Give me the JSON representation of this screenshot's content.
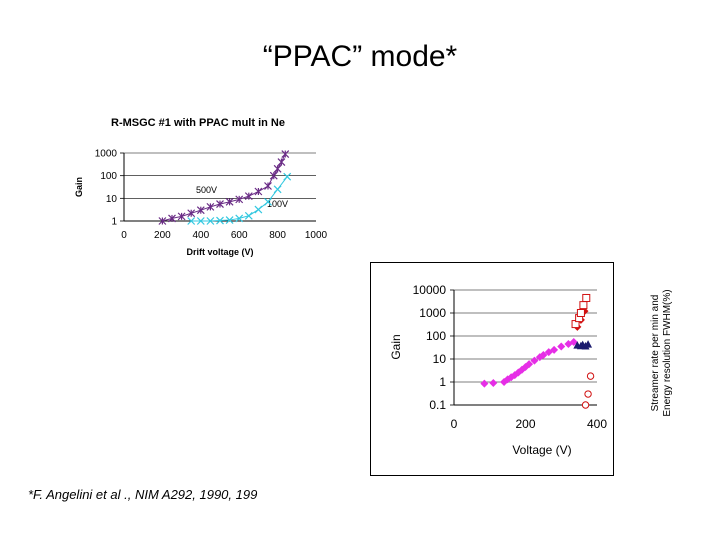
{
  "slide": {
    "title": "“PPAC” mode*",
    "footnote": "*F. Angelini et al ., NIM A292, 1990, 199",
    "side_label_line1": "Streamer rate per min and",
    "side_label_line2": "Energy resolution FWHM(%)"
  },
  "chart_data": [
    {
      "type": "scatter",
      "title": "R-MSGC #1 with PPAC mult in Ne",
      "xlabel": "Drift voltage (V)",
      "ylabel": "Gain",
      "yscale": "log",
      "xlim": [
        0,
        1000
      ],
      "ylim": [
        1,
        1000
      ],
      "x_ticks": [
        0,
        200,
        400,
        600,
        800,
        1000
      ],
      "y_ticks": [
        1,
        10,
        100,
        1000
      ],
      "x_tick_labels": [
        "0",
        "200",
        "400",
        "600",
        "800",
        "1000"
      ],
      "y_tick_labels": [
        "1",
        "10",
        "100",
        "1000"
      ],
      "annotations": [
        "500V",
        "100V"
      ],
      "series": [
        {
          "marker": "star",
          "color": "#6a2c86",
          "connected": true,
          "x": [
            200,
            250,
            300,
            350,
            400,
            450,
            500,
            550,
            600,
            650,
            700,
            750,
            780,
            800,
            820,
            840
          ],
          "y": [
            1,
            1.3,
            1.6,
            2.2,
            3,
            4.2,
            5.6,
            7,
            9,
            12.5,
            20,
            35,
            100,
            200,
            400,
            900
          ]
        },
        {
          "marker": "x",
          "color": "#33c8e0",
          "connected": true,
          "x": [
            350,
            400,
            450,
            500,
            550,
            600,
            650,
            700,
            750,
            800,
            850
          ],
          "y": [
            1,
            1,
            1,
            1.05,
            1.1,
            1.3,
            1.7,
            3.2,
            7,
            25,
            90
          ]
        }
      ]
    },
    {
      "type": "scatter",
      "xlabel": "Voltage (V)",
      "ylabel": "Gain",
      "yscale": "log",
      "xlim": [
        0,
        400
      ],
      "ylim": [
        0.1,
        10000
      ],
      "x_ticks": [
        0,
        200,
        400
      ],
      "y_ticks": [
        0.1,
        1,
        10,
        100,
        1000,
        10000
      ],
      "x_tick_labels": [
        "0",
        "200",
        "400"
      ],
      "y_tick_labels": [
        "0.1",
        "1",
        "10",
        "100",
        "1000",
        "10000"
      ],
      "series": [
        {
          "marker": "diamond",
          "color": "#e62ee6",
          "x": [
            85,
            110,
            140,
            150,
            160,
            170,
            180,
            190,
            200,
            210,
            225,
            240,
            250,
            265,
            280,
            300,
            320,
            335
          ],
          "y": [
            0.85,
            0.9,
            1,
            1.3,
            1.6,
            2,
            2.6,
            3.4,
            4.5,
            6,
            8.5,
            12,
            15,
            20,
            25,
            35,
            45,
            55
          ]
        },
        {
          "marker": "triangle",
          "color": "#1a1a6e",
          "x": [
            345,
            355,
            360,
            368,
            375
          ],
          "y": [
            38,
            36,
            40,
            35,
            42
          ]
        },
        {
          "marker": "diamond",
          "color": "#d11010",
          "x": [
            345,
            355,
            365
          ],
          "y": [
            250,
            500,
            1200
          ]
        },
        {
          "marker": "open-square",
          "color": "#d11010",
          "x": [
            340,
            350,
            355,
            362,
            370
          ],
          "y": [
            330,
            600,
            1000,
            2200,
            4500
          ]
        },
        {
          "marker": "open-circle",
          "color": "#d11010",
          "x": [
            368,
            375,
            382
          ],
          "y": [
            0.1,
            0.3,
            1.8
          ]
        }
      ]
    }
  ]
}
